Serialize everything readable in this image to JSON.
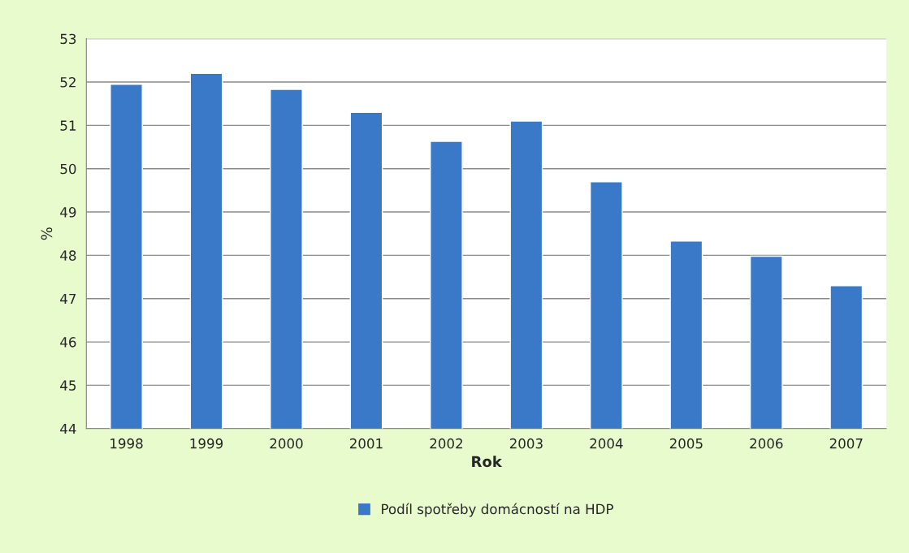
{
  "chart_data": {
    "type": "bar",
    "xlabel": "Rok",
    "ylabel": "%",
    "categories": [
      "1998",
      "1999",
      "2000",
      "2001",
      "2002",
      "2003",
      "2004",
      "2005",
      "2006",
      "2007"
    ],
    "series": [
      {
        "name": "Podíl spotřeby domácností na HDP",
        "color": "#3a78c8",
        "values": [
          51.95,
          52.2,
          51.83,
          51.3,
          50.63,
          51.1,
          49.7,
          48.33,
          47.98,
          47.3
        ]
      }
    ],
    "ylim": [
      44,
      53
    ],
    "yticks": [
      44,
      45,
      46,
      47,
      48,
      49,
      50,
      51,
      52,
      53
    ],
    "grid": "y",
    "legend": "bottom"
  }
}
